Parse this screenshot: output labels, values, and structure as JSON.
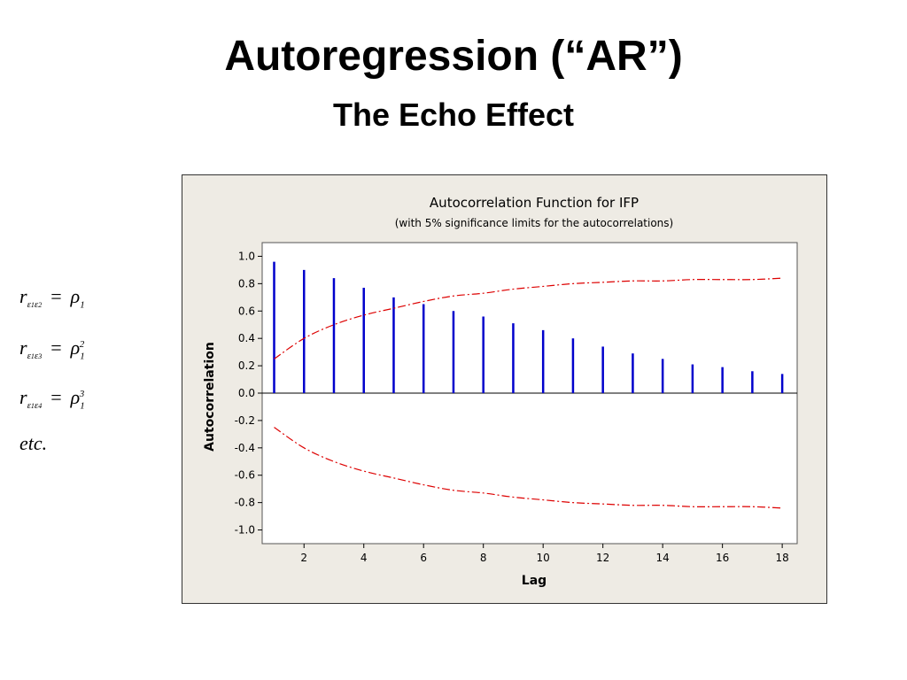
{
  "slide": {
    "title": "Autoregression (“AR”)",
    "subtitle": "The Echo Effect"
  },
  "equations": {
    "r": "r",
    "eps": "ε",
    "rho": "ρ",
    "equals": "=",
    "sub1": "1",
    "sub2": "2",
    "sub3": "3",
    "sub4": "4",
    "pow2": "2",
    "pow3": "3",
    "etc": "etc."
  },
  "colors": {
    "background": "#eeebe4",
    "plot_background": "#ffffff",
    "bars": "#0000cc",
    "limits": "#dd0000"
  },
  "chart_data": {
    "type": "bar",
    "title": "Autocorrelation Function for IFP",
    "subtitle": "(with 5% significance limits for the autocorrelations)",
    "xlabel": "Lag",
    "ylabel": "Autocorrelation",
    "x": [
      1,
      2,
      3,
      4,
      5,
      6,
      7,
      8,
      9,
      10,
      11,
      12,
      13,
      14,
      15,
      16,
      17,
      18
    ],
    "values": [
      0.96,
      0.9,
      0.84,
      0.77,
      0.7,
      0.65,
      0.6,
      0.56,
      0.51,
      0.46,
      0.4,
      0.34,
      0.29,
      0.25,
      0.21,
      0.19,
      0.16,
      0.14
    ],
    "significance_limit_upper": [
      0.25,
      0.4,
      0.5,
      0.57,
      0.62,
      0.67,
      0.71,
      0.73,
      0.76,
      0.78,
      0.8,
      0.81,
      0.82,
      0.82,
      0.83,
      0.83,
      0.83,
      0.84
    ],
    "significance_limit_lower": [
      -0.25,
      -0.4,
      -0.5,
      -0.57,
      -0.62,
      -0.67,
      -0.71,
      -0.73,
      -0.76,
      -0.78,
      -0.8,
      -0.81,
      -0.82,
      -0.82,
      -0.83,
      -0.83,
      -0.83,
      -0.84
    ],
    "xlim": [
      0.6,
      18.5
    ],
    "ylim": [
      -1.1,
      1.1
    ],
    "xticks": [
      2,
      4,
      6,
      8,
      10,
      12,
      14,
      16,
      18
    ],
    "yticks": [
      1.0,
      0.8,
      0.6,
      0.4,
      0.2,
      0.0,
      -0.2,
      -0.4,
      -0.6,
      -0.8,
      -1.0
    ],
    "ytick_labels": [
      "1.0",
      "0.8",
      "0.6",
      "0.4",
      "0.2",
      "0.0",
      "-0.2",
      "-0.4",
      "-0.6",
      "-0.8",
      "-1.0"
    ],
    "xtick_labels": [
      "2",
      "4",
      "6",
      "8",
      "10",
      "12",
      "14",
      "16",
      "18"
    ],
    "grid": false,
    "zero_line": true
  }
}
